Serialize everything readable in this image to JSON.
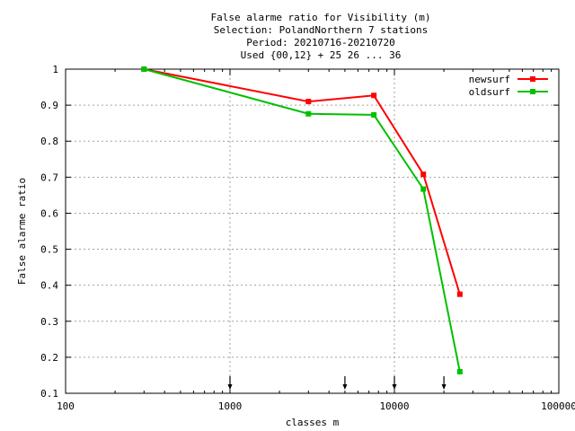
{
  "chart_data": {
    "type": "line",
    "title_lines": [
      "False alarme ratio  for Visibility (m)",
      "Selection: PolandNorthern      7 stations",
      "Period: 20210716-20210720",
      "Used {00,12} + 25 26 ... 36"
    ],
    "xlabel": "classes m",
    "ylabel": "False alarme ratio",
    "x_scale": "log",
    "xlim": [
      100,
      100000
    ],
    "ylim": [
      0.1,
      1
    ],
    "x_ticks": [
      100,
      1000,
      10000,
      100000
    ],
    "x_tick_labels": [
      "100",
      "1000",
      "10000",
      "100000"
    ],
    "y_ticks": [
      0.1,
      0.2,
      0.3,
      0.4,
      0.5,
      0.6,
      0.7,
      0.8,
      0.9,
      1
    ],
    "y_tick_labels": [
      "0.1",
      "0.2",
      "0.3",
      "0.4",
      "0.5",
      "0.6",
      "0.7",
      "0.8",
      "0.9",
      "1"
    ],
    "grid": true,
    "legend_position": "top-right",
    "threshold_markers": [
      1000,
      5000,
      10000,
      20000
    ],
    "series": [
      {
        "name": "newsurf",
        "color": "#ff0000",
        "x": [
          300,
          3000,
          7500,
          15000,
          25000
        ],
        "y": [
          1.0,
          0.91,
          0.927,
          0.708,
          0.375
        ]
      },
      {
        "name": "oldsurf",
        "color": "#00c000",
        "x": [
          300,
          3000,
          7500,
          15000,
          25000
        ],
        "y": [
          1.0,
          0.876,
          0.873,
          0.667,
          0.16
        ]
      }
    ]
  }
}
